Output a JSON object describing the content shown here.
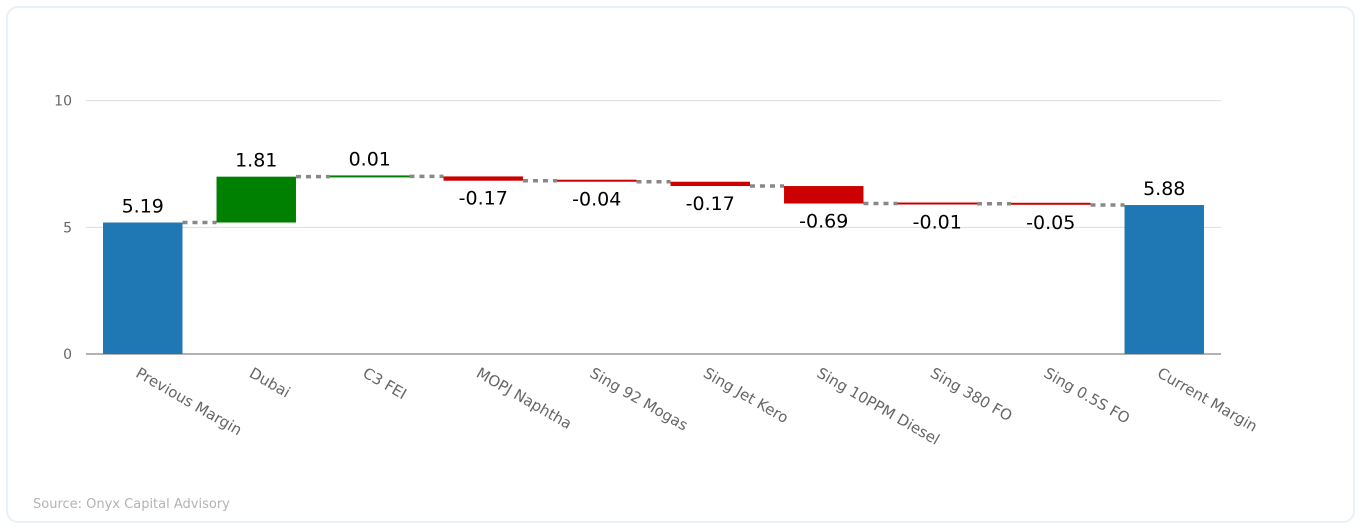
{
  "source": "Source: Onyx Capital Advisory",
  "colors": {
    "total": "#1f77b4",
    "increase": "#008000",
    "decrease": "#cc0000",
    "connector": "#888888",
    "grid": "#dddddd",
    "axis": "#666666"
  },
  "chart_data": {
    "type": "bar",
    "subtype": "waterfall",
    "title": "",
    "xlabel": "",
    "ylabel": "",
    "ylim": [
      0,
      12
    ],
    "yticks": [
      0,
      5,
      10
    ],
    "grid": true,
    "legend": "none",
    "categories": [
      "Previous Margin",
      "Dubai",
      "C3 FEI",
      "MOPJ Naphtha",
      "Sing 92 Mogas",
      "Sing Jet Kero",
      "Sing 10PPM Diesel",
      "Sing 380 FO",
      "Sing 0.5S FO",
      "Current Margin"
    ],
    "measures": [
      "total",
      "relative",
      "relative",
      "relative",
      "relative",
      "relative",
      "relative",
      "relative",
      "relative",
      "total"
    ],
    "values": [
      5.19,
      1.81,
      0.01,
      -0.17,
      -0.04,
      -0.17,
      -0.69,
      -0.01,
      -0.05,
      5.88
    ],
    "labels": [
      "5.19",
      "1.81",
      "0.01",
      "-0.17",
      "-0.04",
      "-0.17",
      "-0.69",
      "-0.01",
      "-0.05",
      "5.88"
    ]
  }
}
